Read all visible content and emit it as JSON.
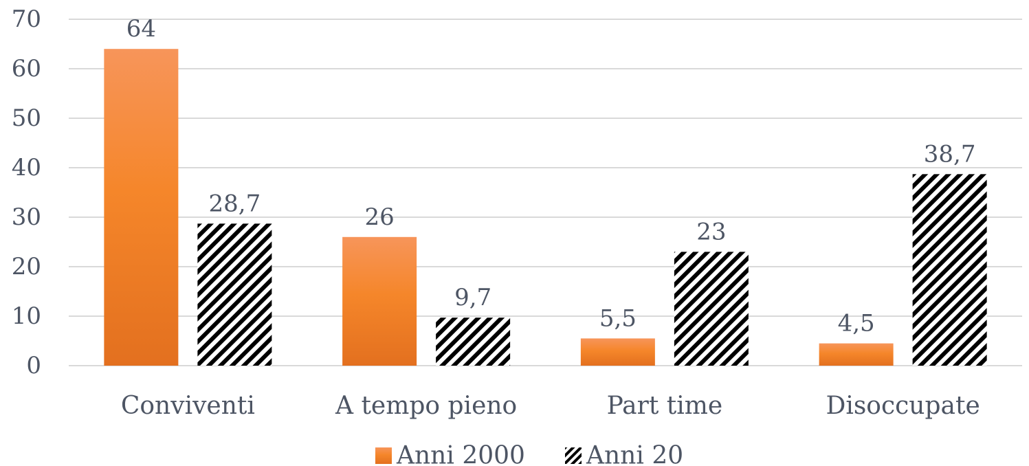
{
  "chart_data": {
    "type": "bar",
    "categories": [
      "Conviventi",
      "A tempo pieno",
      "Part time",
      "Disoccupate"
    ],
    "series": [
      {
        "name": "Anni 2000",
        "values": [
          64,
          26,
          5.5,
          4.5
        ],
        "labels": [
          "64",
          "26",
          "5,5",
          "4,5"
        ],
        "color": "#f08a34",
        "fill": "gradient-orange"
      },
      {
        "name": "Anni 20",
        "values": [
          28.7,
          9.7,
          23,
          38.7
        ],
        "labels": [
          "28,7",
          "9,7",
          "23",
          "38,7"
        ],
        "color": "#000000",
        "fill": "diagonal-hatch-black"
      }
    ],
    "y_ticks": [
      "0",
      "10",
      "20",
      "30",
      "40",
      "50",
      "60",
      "70"
    ],
    "ylim": [
      0,
      70
    ],
    "title": "",
    "xlabel": "",
    "ylabel": "",
    "grid": true,
    "legend_position": "bottom-center"
  }
}
